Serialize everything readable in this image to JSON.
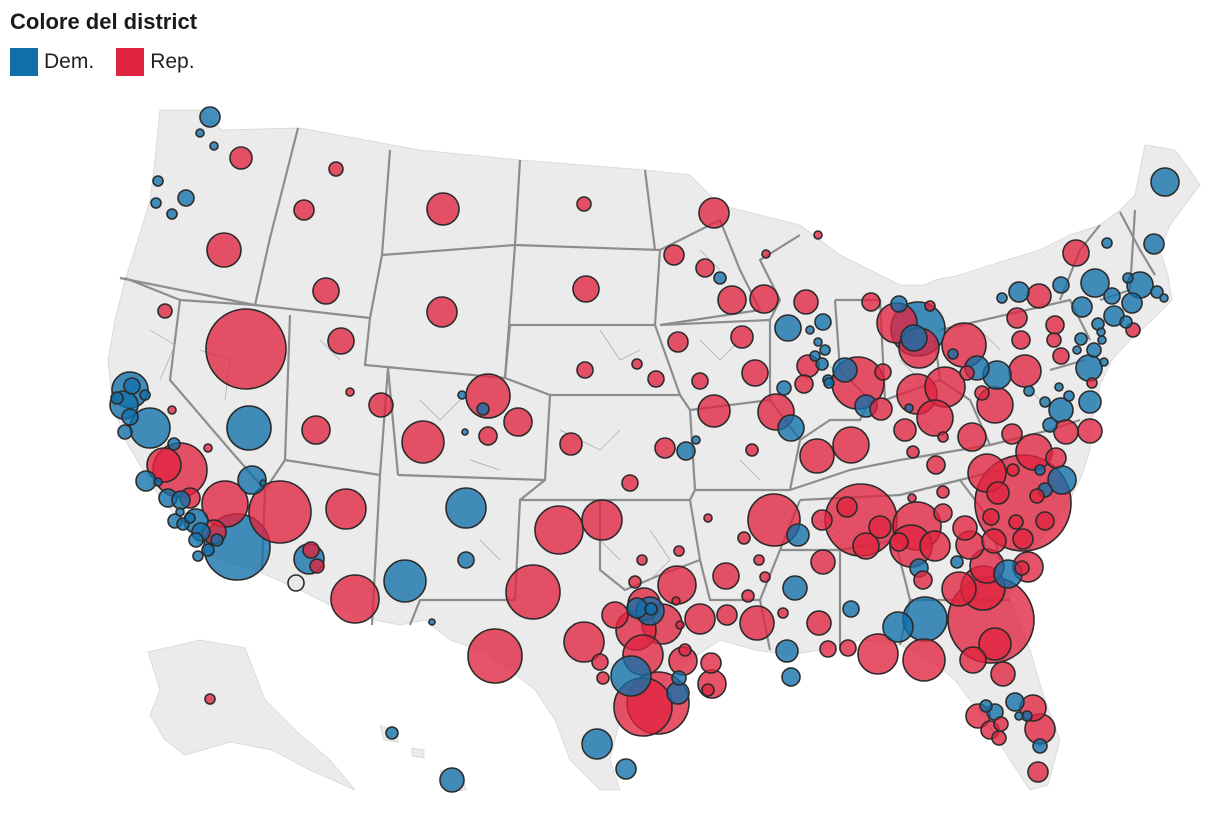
{
  "legend": {
    "title": "Colore del district",
    "items": [
      {
        "label": "Dem.",
        "color": "#1170aa"
      },
      {
        "label": "Rep.",
        "color": "#e0243f"
      }
    ]
  },
  "colors": {
    "dem": "#1170aa",
    "rep": "#e0243f",
    "land": "#ebebeb",
    "border": "#8d8d8d",
    "other": "#e8e8e8"
  }
}
